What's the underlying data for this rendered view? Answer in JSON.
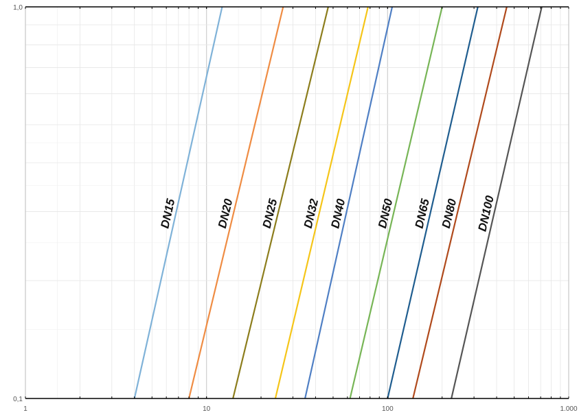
{
  "chart_data": {
    "type": "line",
    "title": "",
    "xlabel": "",
    "ylabel": "",
    "x_scale": "log",
    "y_scale": "log",
    "xlim": [
      1,
      1000
    ],
    "ylim": [
      0.1,
      1.0
    ],
    "grid": true,
    "legend": "none",
    "x_ticks": [
      {
        "value": 1,
        "label": "1"
      },
      {
        "value": 10,
        "label": "10"
      },
      {
        "value": 100,
        "label": "100"
      },
      {
        "value": 1000,
        "label": "1.000"
      }
    ],
    "y_ticks": [
      {
        "value": 0.1,
        "label": "0,1"
      },
      {
        "value": 1.0,
        "label": "1,0"
      }
    ],
    "series": [
      {
        "name": "DN15",
        "color": "#7fb2d8",
        "x": [
          4.0,
          12.2
        ],
        "y": [
          0.1,
          1.0
        ]
      },
      {
        "name": "DN20",
        "color": "#ef8c43",
        "x": [
          8.0,
          26.5
        ],
        "y": [
          0.1,
          1.0
        ]
      },
      {
        "name": "DN25",
        "color": "#8c7d1c",
        "x": [
          14.0,
          47.0
        ],
        "y": [
          0.1,
          1.0
        ]
      },
      {
        "name": "DN32",
        "color": "#f5c518",
        "x": [
          24.0,
          78.0
        ],
        "y": [
          0.1,
          1.0
        ]
      },
      {
        "name": "DN40",
        "color": "#4f7fc4",
        "x": [
          35.0,
          106.0
        ],
        "y": [
          0.1,
          1.0
        ]
      },
      {
        "name": "DN50",
        "color": "#77b556",
        "x": [
          62.0,
          200.0
        ],
        "y": [
          0.1,
          1.0
        ]
      },
      {
        "name": "DN65",
        "color": "#1f5d8f",
        "x": [
          100.0,
          315.0
        ],
        "y": [
          0.1,
          1.0
        ]
      },
      {
        "name": "DN80",
        "color": "#b04a1c",
        "x": [
          138.0,
          455.0
        ],
        "y": [
          0.1,
          1.0
        ]
      },
      {
        "name": "DN100",
        "color": "#555555",
        "x": [
          225.0,
          710.0
        ],
        "y": [
          0.1,
          1.0
        ]
      }
    ]
  }
}
